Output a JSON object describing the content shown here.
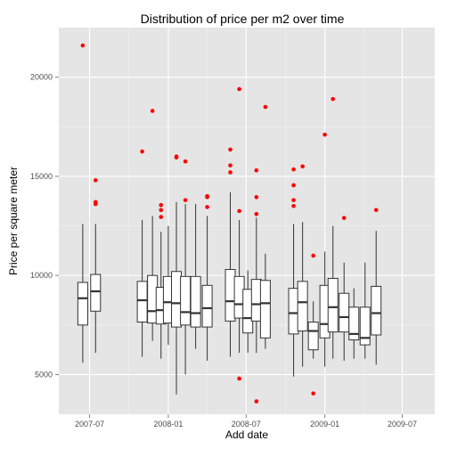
{
  "chart_data": {
    "type": "box",
    "title": "Distribution of price per m2 over time",
    "xlabel": "Add date",
    "ylabel": "Price per square meter",
    "x_ticks": [
      {
        "label": "2007-07",
        "date": "2007-07-01"
      },
      {
        "label": "2008-01",
        "date": "2008-01-01"
      },
      {
        "label": "2008-07",
        "date": "2008-07-01"
      },
      {
        "label": "2009-01",
        "date": "2009-01-01"
      },
      {
        "label": "2009-07",
        "date": "2009-07-01"
      }
    ],
    "y_ticks": [
      5000,
      10000,
      15000,
      20000
    ],
    "xlim": [
      "2007-04-20",
      "2009-09-15"
    ],
    "ylim": [
      3000,
      22500
    ],
    "grid": true,
    "outlier_color": "#ff0000",
    "boxes": [
      {
        "date": "2007-06-15",
        "whisker_low": 5600,
        "q1": 7500,
        "median": 8850,
        "q3": 9650,
        "whisker_high": 12600,
        "outliers": [
          21600
        ]
      },
      {
        "date": "2007-07-15",
        "whisker_low": 6100,
        "q1": 8200,
        "median": 9200,
        "q3": 10050,
        "whisker_high": 12600,
        "outliers": [
          14800,
          13700,
          13600
        ]
      },
      {
        "date": "2007-11-01",
        "whisker_low": 5900,
        "q1": 7650,
        "median": 8750,
        "q3": 9700,
        "whisker_high": 12800,
        "outliers": [
          16250
        ]
      },
      {
        "date": "2007-11-25",
        "whisker_low": 6700,
        "q1": 7600,
        "median": 8200,
        "q3": 10000,
        "whisker_high": 13000,
        "outliers": [
          18300
        ]
      },
      {
        "date": "2007-12-15",
        "whisker_low": 5800,
        "q1": 7550,
        "median": 8250,
        "q3": 9400,
        "whisker_high": 12200,
        "outliers": [
          13550,
          13300,
          12950
        ]
      },
      {
        "date": "2008-01-01",
        "whisker_low": 6500,
        "q1": 7600,
        "median": 8650,
        "q3": 9950,
        "whisker_high": 12500,
        "outliers": []
      },
      {
        "date": "2008-01-20",
        "whisker_low": 4000,
        "q1": 7400,
        "median": 8600,
        "q3": 10200,
        "whisker_high": 13700,
        "outliers": [
          15950,
          16000
        ]
      },
      {
        "date": "2008-02-10",
        "whisker_low": 5000,
        "q1": 7500,
        "median": 8150,
        "q3": 9950,
        "whisker_high": 13600,
        "outliers": [
          15750,
          13800
        ]
      },
      {
        "date": "2008-03-05",
        "whisker_low": 6300,
        "q1": 7400,
        "median": 8100,
        "q3": 9950,
        "whisker_high": 13600,
        "outliers": []
      },
      {
        "date": "2008-04-01",
        "whisker_low": 5700,
        "q1": 7400,
        "median": 8350,
        "q3": 9500,
        "whisker_high": 13000,
        "outliers": [
          13950,
          13450,
          14000
        ]
      },
      {
        "date": "2008-05-25",
        "whisker_low": 5900,
        "q1": 7700,
        "median": 8700,
        "q3": 10300,
        "whisker_high": 14200,
        "outliers": [
          16350,
          15550,
          15200
        ]
      },
      {
        "date": "2008-06-15",
        "whisker_low": 6100,
        "q1": 7850,
        "median": 8550,
        "q3": 9950,
        "whisker_high": 12800,
        "outliers": [
          19400,
          13250,
          4800
        ]
      },
      {
        "date": "2008-07-05",
        "whisker_low": 6100,
        "q1": 7100,
        "median": 7850,
        "q3": 9300,
        "whisker_high": 10250,
        "outliers": []
      },
      {
        "date": "2008-07-25",
        "whisker_low": 6100,
        "q1": 7700,
        "median": 8550,
        "q3": 9800,
        "whisker_high": 12900,
        "outliers": [
          15300,
          13950,
          13100,
          3650
        ]
      },
      {
        "date": "2008-08-15",
        "whisker_low": 6300,
        "q1": 6850,
        "median": 8600,
        "q3": 9750,
        "whisker_high": 11100,
        "outliers": [
          18500
        ]
      },
      {
        "date": "2008-10-20",
        "whisker_low": 4900,
        "q1": 7050,
        "median": 8100,
        "q3": 9350,
        "whisker_high": 12600,
        "outliers": [
          15350,
          14550,
          13800,
          13500
        ]
      },
      {
        "date": "2008-11-10",
        "whisker_low": 5400,
        "q1": 7200,
        "median": 8650,
        "q3": 9700,
        "whisker_high": 12700,
        "outliers": [
          15500
        ]
      },
      {
        "date": "2008-12-05",
        "whisker_low": 5800,
        "q1": 6250,
        "median": 7200,
        "q3": 7650,
        "whisker_high": 8700,
        "outliers": [
          11000,
          4050
        ]
      },
      {
        "date": "2009-01-01",
        "whisker_low": 5400,
        "q1": 6850,
        "median": 7550,
        "q3": 9500,
        "whisker_high": 11200,
        "outliers": [
          17100
        ]
      },
      {
        "date": "2009-01-20",
        "whisker_low": 5800,
        "q1": 7150,
        "median": 8400,
        "q3": 9850,
        "whisker_high": 12500,
        "outliers": [
          18900
        ]
      },
      {
        "date": "2009-02-15",
        "whisker_low": 5700,
        "q1": 7150,
        "median": 7900,
        "q3": 9100,
        "whisker_high": 10650,
        "outliers": [
          12900
        ]
      },
      {
        "date": "2009-03-10",
        "whisker_low": 5800,
        "q1": 6750,
        "median": 7050,
        "q3": 8400,
        "whisker_high": 9350,
        "outliers": []
      },
      {
        "date": "2009-04-05",
        "whisker_low": 5800,
        "q1": 6500,
        "median": 6850,
        "q3": 8400,
        "whisker_high": 10650,
        "outliers": []
      },
      {
        "date": "2009-05-01",
        "whisker_low": 5500,
        "q1": 7000,
        "median": 8100,
        "q3": 9450,
        "whisker_high": 12250,
        "outliers": [
          13300
        ]
      }
    ]
  }
}
